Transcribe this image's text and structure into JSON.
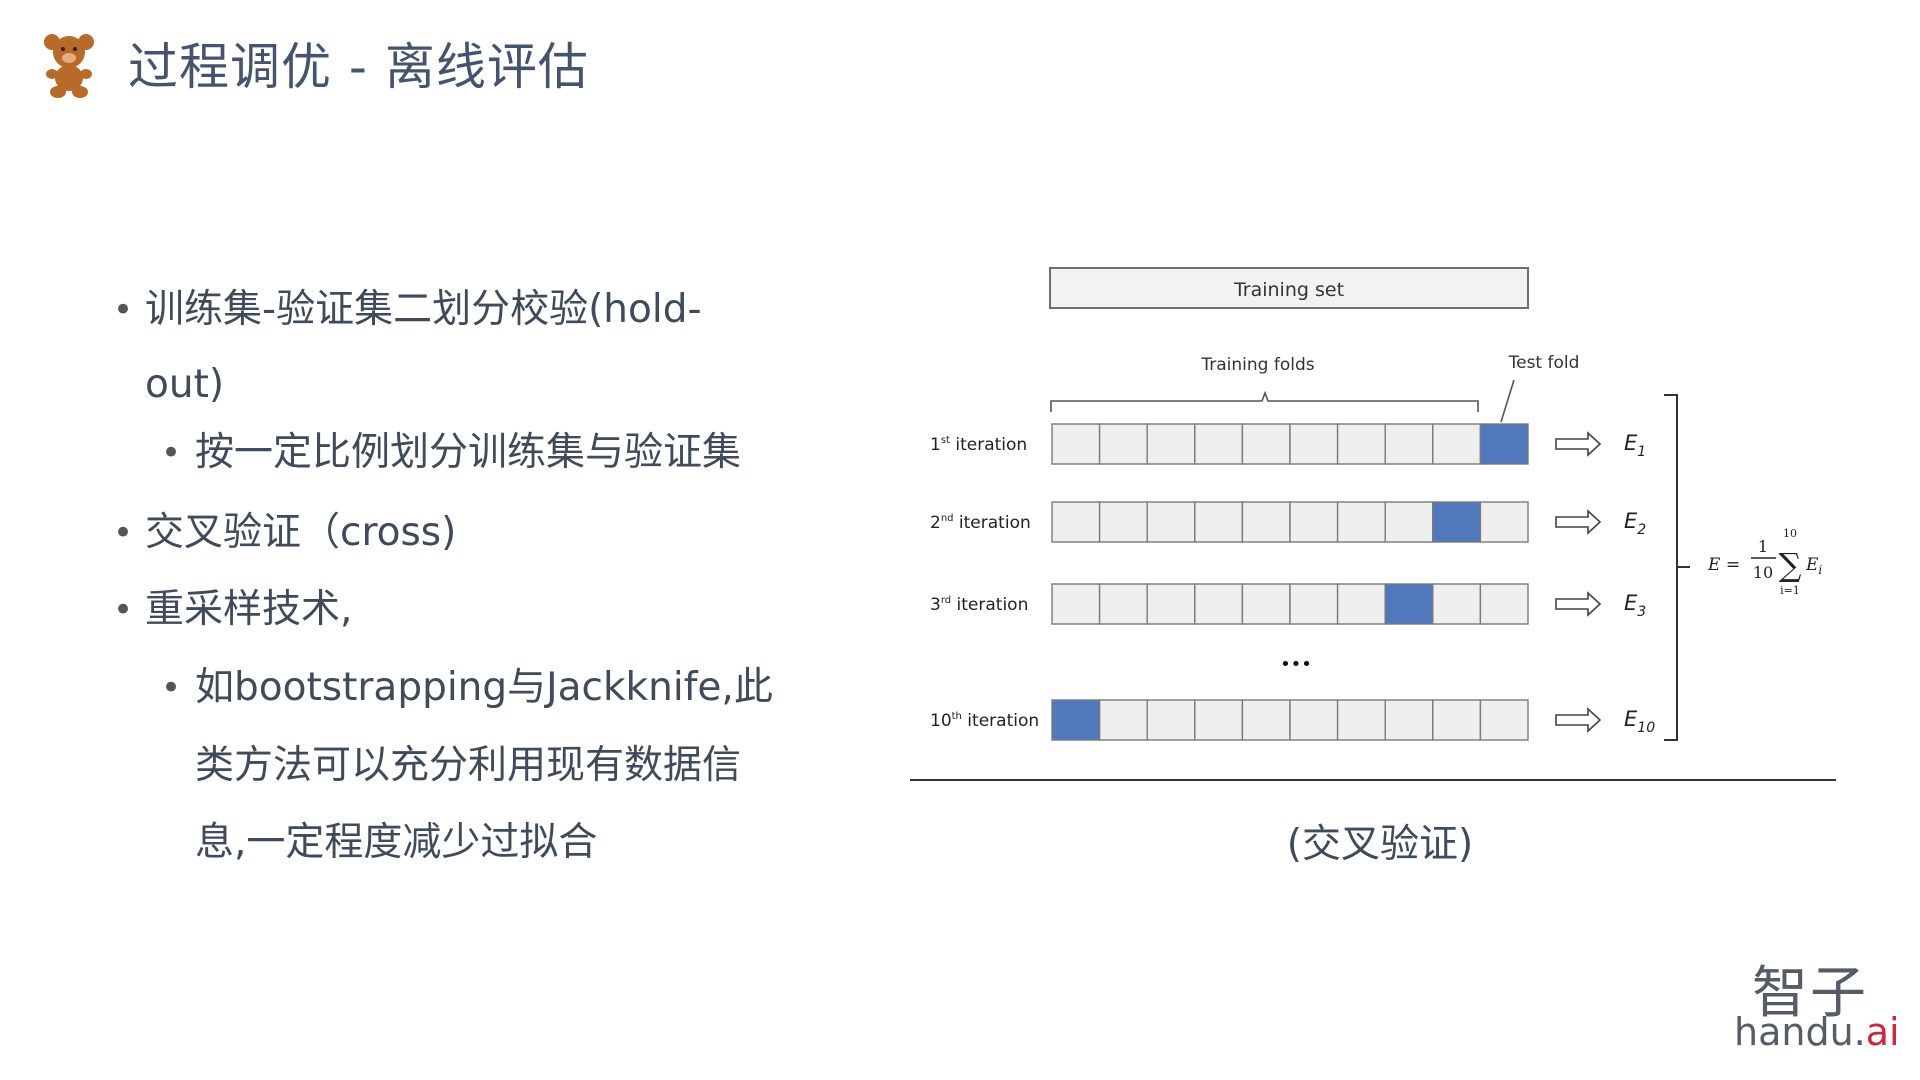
{
  "title": "过程调优 - 离线评估",
  "bullets": {
    "b1_line1": "训练集-验证集二划分校验(hold-",
    "b1_line2": "out)",
    "b1_sub": "按一定比例划分训练集与验证集",
    "b2": "交叉验证（cross)",
    "b3": "重采样技术,",
    "b3_sub_line1": "如bootstrapping与Jackknife,此",
    "b3_sub_line2": "类方法可以充分利用现有数据信",
    "b3_sub_line3": "息,一定程度减少过拟合"
  },
  "diagram": {
    "training_set_label": "Training set",
    "training_folds_label": "Training folds",
    "test_fold_label": "Test fold",
    "ellipsis": "•••",
    "iterations": [
      {
        "num": "1",
        "sup": "st",
        "word": "iteration",
        "test_fold": 10,
        "err_base": "E",
        "err_sub": "1"
      },
      {
        "num": "2",
        "sup": "nd",
        "word": "iteration",
        "test_fold": 9,
        "err_base": "E",
        "err_sub": "2"
      },
      {
        "num": "3",
        "sup": "rd",
        "word": "iteration",
        "test_fold": 8,
        "err_base": "E",
        "err_sub": "3"
      },
      {
        "num": "10",
        "sup": "th",
        "word": "iteration",
        "test_fold": 1,
        "err_base": "E",
        "err_sub": "10"
      }
    ],
    "fold_count": 10,
    "formula": {
      "lhs": "E =",
      "numerator": "1",
      "denominator": "10",
      "sum_top": "10",
      "sum_bottom": "i=1",
      "term": "E",
      "term_sub": "i"
    },
    "caption": "(交叉验证)"
  },
  "brand": {
    "cn": "智子",
    "en_main": "handu.",
    "en_accent": "ai"
  },
  "colors": {
    "test_fold": "#4f78bd",
    "cell_fill": "#efefef",
    "cell_stroke": "#7a7a7a",
    "title": "#44546e",
    "bear": "#b86a28",
    "brand_accent": "#c9293b"
  }
}
